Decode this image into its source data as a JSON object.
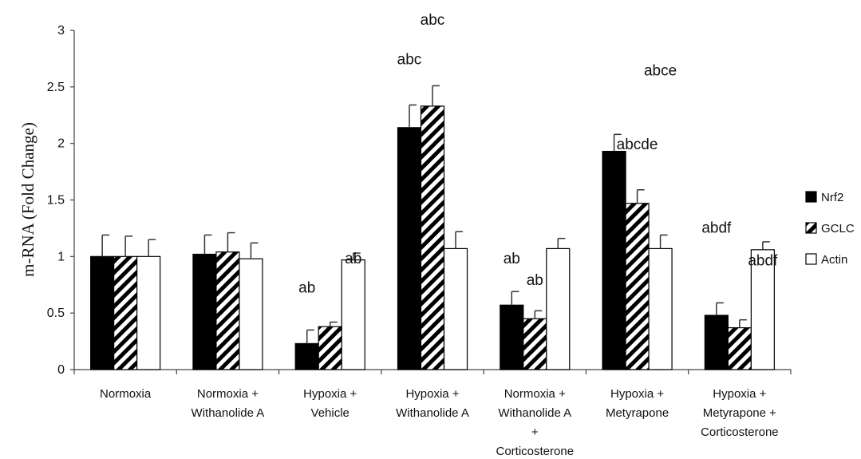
{
  "chart_data": {
    "type": "bar",
    "ylabel": "m-RNA  (Fold Change)",
    "ylim": [
      0,
      3
    ],
    "yticks": [
      "0",
      "0.5",
      "1",
      "1.5",
      "2",
      "2.5",
      "3"
    ],
    "categories": [
      [
        "Normoxia"
      ],
      [
        "Normoxia +",
        "Withanolide A"
      ],
      [
        "Hypoxia +",
        "Vehicle"
      ],
      [
        "Hypoxia +",
        "Withanolide A"
      ],
      [
        "Normoxia +",
        "Withanolide A",
        "+",
        "Corticosterone"
      ],
      [
        "Hypoxia +",
        "Metyrapone"
      ],
      [
        "Hypoxia +",
        "Metyrapone +",
        "Corticosterone"
      ]
    ],
    "series": [
      {
        "name": "Nrf2",
        "fill": "solid",
        "color": "#000000",
        "values": [
          1.0,
          1.02,
          0.23,
          2.14,
          0.57,
          1.93,
          0.48
        ],
        "errors": [
          0.19,
          0.17,
          0.12,
          0.2,
          0.12,
          0.15,
          0.11
        ]
      },
      {
        "name": "GCLC",
        "fill": "hatch",
        "color": "#000000",
        "values": [
          1.0,
          1.04,
          0.38,
          2.33,
          0.45,
          1.47,
          0.37
        ],
        "errors": [
          0.18,
          0.17,
          0.04,
          0.18,
          0.07,
          0.12,
          0.07
        ]
      },
      {
        "name": "Actin",
        "fill": "empty",
        "color": "#ffffff",
        "values": [
          1.0,
          0.98,
          0.97,
          1.07,
          1.07,
          1.07,
          1.06
        ],
        "errors": [
          0.15,
          0.14,
          0.06,
          0.15,
          0.09,
          0.12,
          0.07
        ]
      }
    ],
    "annotations": [
      {
        "text": "ab",
        "category": 2,
        "series": 0,
        "value": 0.68
      },
      {
        "text": "ab",
        "category": 2,
        "series": 2,
        "value": 0.94
      },
      {
        "text": "abc",
        "category": 3,
        "series": 0,
        "value": 2.7
      },
      {
        "text": "abc",
        "category": 3,
        "series": 1,
        "value": 3.05
      },
      {
        "text": "ab",
        "category": 4,
        "series": 0,
        "value": 0.94
      },
      {
        "text": "ab",
        "category": 4,
        "series": 1,
        "value": 0.75
      },
      {
        "text": "abce",
        "category": 5,
        "series": 2,
        "value": 2.6
      },
      {
        "text": "abcde",
        "category": 5,
        "series": 1,
        "value": 1.95
      },
      {
        "text": "abdf",
        "category": 6,
        "series": 0,
        "value": 1.21
      },
      {
        "text": "abdf",
        "category": 6,
        "series": 2,
        "value": 0.92
      }
    ],
    "legend_position": "right",
    "grid": false
  }
}
